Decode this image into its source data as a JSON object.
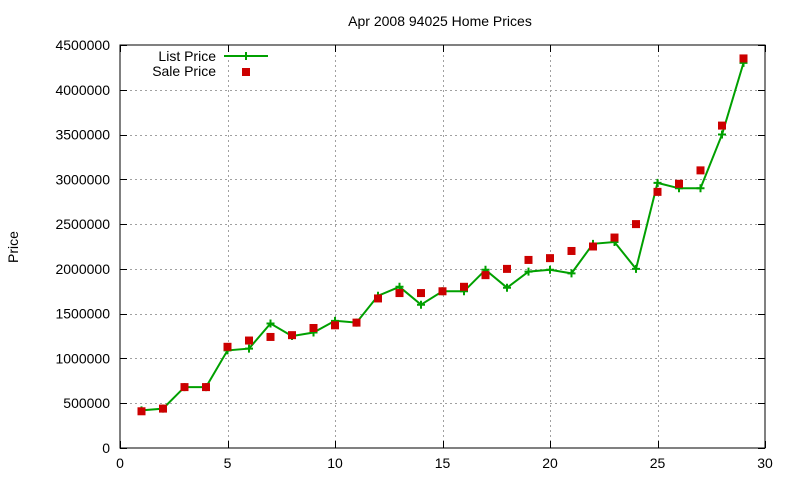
{
  "chart_data": {
    "type": "line",
    "title": "Apr 2008 94025 Home Prices",
    "xlabel": "",
    "ylabel": "Price",
    "xlim": [
      0,
      30
    ],
    "ylim": [
      0,
      4500000
    ],
    "xticks": [
      0,
      5,
      10,
      15,
      20,
      25,
      30
    ],
    "yticks": [
      0,
      500000,
      1000000,
      1500000,
      2000000,
      2500000,
      3000000,
      3500000,
      4000000,
      4500000
    ],
    "grid": true,
    "legend_position": "top-left",
    "series": [
      {
        "name": "List Price",
        "style": "line-with-plus-markers",
        "color": "#00a000",
        "x": [
          1,
          2,
          3,
          4,
          5,
          6,
          7,
          8,
          9,
          10,
          11,
          12,
          13,
          14,
          15,
          16,
          17,
          18,
          19,
          20,
          21,
          22,
          23,
          24,
          25,
          26,
          27,
          28,
          29
        ],
        "y": [
          420000,
          440000,
          680000,
          680000,
          1090000,
          1110000,
          1390000,
          1250000,
          1290000,
          1420000,
          1400000,
          1700000,
          1800000,
          1600000,
          1750000,
          1750000,
          1990000,
          1790000,
          1970000,
          1990000,
          1950000,
          2280000,
          2300000,
          2000000,
          2960000,
          2900000,
          2900000,
          3500000,
          4300000
        ]
      },
      {
        "name": "Sale Price",
        "style": "square-markers",
        "color": "#cc0000",
        "x": [
          1,
          2,
          3,
          4,
          5,
          6,
          7,
          8,
          9,
          10,
          11,
          12,
          13,
          14,
          15,
          16,
          17,
          18,
          19,
          20,
          21,
          22,
          23,
          24,
          25,
          26,
          27,
          28,
          29
        ],
        "y": [
          410000,
          440000,
          680000,
          680000,
          1130000,
          1200000,
          1240000,
          1260000,
          1340000,
          1370000,
          1400000,
          1670000,
          1730000,
          1730000,
          1750000,
          1800000,
          1930000,
          2000000,
          2100000,
          2120000,
          2200000,
          2250000,
          2350000,
          2500000,
          2860000,
          2950000,
          3100000,
          3600000,
          4350000
        ]
      }
    ]
  }
}
